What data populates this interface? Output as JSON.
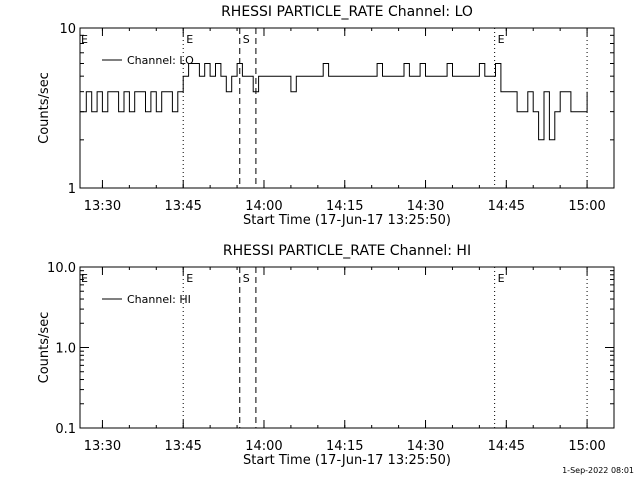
{
  "chart_data": [
    {
      "type": "line",
      "title": "RHESSI PARTICLE_RATE Channel: LO",
      "xlabel": "Start Time (17-Jun-17 13:25:50)",
      "ylabel": "Counts/sec",
      "y_scale": "log",
      "ylim": [
        1,
        10
      ],
      "xlim": [
        "13:25:50",
        "15:05:00"
      ],
      "x_ticks": [
        "13:30",
        "13:45",
        "14:00",
        "14:15",
        "14:30",
        "14:45",
        "15:00"
      ],
      "y_ticks": [
        "1",
        "10"
      ],
      "legend": {
        "label": "Channel: LO",
        "placement": "top-left"
      },
      "markers": [
        {
          "time": "13:45:00",
          "label": "E",
          "style": "dotted"
        },
        {
          "time": "13:55:30",
          "label": "S",
          "style": "dashed"
        },
        {
          "time": "13:58:30",
          "label": "",
          "style": "dashed"
        },
        {
          "time": "14:42:50",
          "label": "E",
          "style": "dotted"
        },
        {
          "time": "15:00:00",
          "label": "",
          "style": "dotted"
        }
      ],
      "series": [
        {
          "name": "Channel: LO",
          "x": [
            "13:25:50",
            "13:27:00",
            "13:28:00",
            "13:29:00",
            "13:30:00",
            "13:31:00",
            "13:32:00",
            "13:33:00",
            "13:34:00",
            "13:35:00",
            "13:36:00",
            "13:37:00",
            "13:38:00",
            "13:39:00",
            "13:40:00",
            "13:41:00",
            "13:42:00",
            "13:43:00",
            "13:44:00",
            "13:45:00",
            "13:46:00",
            "13:47:00",
            "13:48:00",
            "13:49:00",
            "13:50:00",
            "13:51:00",
            "13:52:00",
            "13:53:00",
            "13:54:00",
            "13:55:00",
            "13:56:00",
            "13:57:00",
            "13:58:00",
            "13:59:00",
            "14:00:00",
            "14:01:00",
            "14:02:00",
            "14:03:00",
            "14:04:00",
            "14:05:00",
            "14:06:00",
            "14:07:00",
            "14:08:00",
            "14:09:00",
            "14:10:00",
            "14:11:00",
            "14:12:00",
            "14:13:00",
            "14:14:00",
            "14:15:00",
            "14:16:00",
            "14:17:00",
            "14:18:00",
            "14:19:00",
            "14:20:00",
            "14:21:00",
            "14:22:00",
            "14:23:00",
            "14:24:00",
            "14:25:00",
            "14:26:00",
            "14:27:00",
            "14:28:00",
            "14:29:00",
            "14:30:00",
            "14:31:00",
            "14:32:00",
            "14:33:00",
            "14:34:00",
            "14:35:00",
            "14:36:00",
            "14:37:00",
            "14:38:00",
            "14:39:00",
            "14:40:00",
            "14:41:00",
            "14:42:00",
            "14:43:00",
            "14:44:00",
            "14:45:00",
            "14:46:00",
            "14:47:00",
            "14:48:00",
            "14:49:00",
            "14:50:00",
            "14:51:00",
            "14:52:00",
            "14:53:00",
            "14:54:00",
            "14:55:00",
            "14:56:00",
            "14:57:00",
            "14:58:00",
            "14:59:00",
            "15:00:00"
          ],
          "values": [
            3,
            4,
            3,
            4,
            3,
            4,
            4,
            3,
            4,
            3,
            4,
            4,
            3,
            4,
            3,
            4,
            4,
            3,
            4,
            5,
            6,
            6,
            5,
            6,
            5,
            6,
            5,
            4,
            5,
            6,
            5,
            5,
            4,
            5,
            5,
            5,
            5,
            5,
            5,
            4,
            5,
            5,
            5,
            5,
            5,
            6,
            5,
            5,
            5,
            5,
            5,
            5,
            5,
            5,
            5,
            6,
            5,
            5,
            5,
            5,
            6,
            5,
            5,
            6,
            5,
            5,
            5,
            5,
            6,
            5,
            5,
            5,
            5,
            5,
            6,
            5,
            5,
            6,
            4,
            4,
            4,
            3,
            3,
            4,
            3,
            2,
            4,
            2,
            3,
            4,
            4,
            3,
            3,
            3,
            4
          ]
        }
      ]
    },
    {
      "type": "line",
      "title": "RHESSI PARTICLE_RATE Channel: HI",
      "xlabel": "Start Time (17-Jun-17 13:25:50)",
      "ylabel": "Counts/sec",
      "y_scale": "log",
      "ylim": [
        0.1,
        10
      ],
      "xlim": [
        "13:25:50",
        "15:05:00"
      ],
      "x_ticks": [
        "13:30",
        "13:45",
        "14:00",
        "14:15",
        "14:30",
        "14:45",
        "15:00"
      ],
      "y_ticks": [
        "0.1",
        "1.0",
        "10.0"
      ],
      "legend": {
        "label": "Channel: HI",
        "placement": "top-left"
      },
      "markers": [
        {
          "time": "13:45:00",
          "label": "E",
          "style": "dotted"
        },
        {
          "time": "13:55:30",
          "label": "S",
          "style": "dashed"
        },
        {
          "time": "13:58:30",
          "label": "",
          "style": "dashed"
        },
        {
          "time": "14:42:50",
          "label": "E",
          "style": "dotted"
        },
        {
          "time": "15:00:00",
          "label": "",
          "style": "dotted"
        }
      ],
      "series": [
        {
          "name": "Channel: HI",
          "x": [],
          "values": []
        }
      ]
    }
  ],
  "footer": "1-Sep-2022 08:01"
}
